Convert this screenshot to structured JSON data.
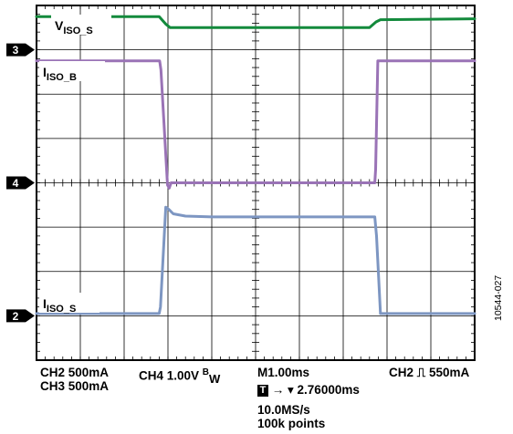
{
  "chart_data": {
    "type": "line",
    "grid": true,
    "time_axis": {
      "divisions": 10,
      "time_per_div": "1.00ms"
    },
    "vertical_divisions": 8,
    "markers": [
      {
        "label": "3",
        "channel": "CH3",
        "level_div": 3.0
      },
      {
        "label": "4",
        "channel": "CH4",
        "level_div": 0.0
      },
      {
        "label": "2",
        "channel": "CH2",
        "level_div": -3.0
      }
    ],
    "series": [
      {
        "name": "VISO_S",
        "label_main": "V",
        "label_sub": "ISO_S",
        "color": "#138a3c",
        "x_div": [
          0,
          2.8,
          2.95,
          3.05,
          7.6,
          7.75,
          7.85,
          10
        ],
        "y_div": [
          3.75,
          3.75,
          3.58,
          3.5,
          3.5,
          3.63,
          3.68,
          3.7
        ]
      },
      {
        "name": "IISO_B",
        "label_main": "I",
        "label_sub": "ISO_B",
        "color": "#9a73b6",
        "x_div": [
          0,
          2.81,
          2.84,
          2.99,
          3.03,
          3.07,
          3.12,
          7.72,
          7.74,
          7.79,
          10
        ],
        "y_div": [
          2.75,
          2.75,
          2.55,
          -0.05,
          -0.12,
          0.0,
          0.0,
          0.0,
          0.3,
          2.75,
          2.75
        ]
      },
      {
        "name": "IISO_S",
        "label_main": "I",
        "label_sub": "ISO_S",
        "color": "#7d96c2",
        "x_div": [
          0,
          2.8,
          2.83,
          2.95,
          3.02,
          3.12,
          3.4,
          4.0,
          7.72,
          7.76,
          7.85,
          10
        ],
        "y_div": [
          -2.95,
          -2.95,
          -2.8,
          -0.55,
          -0.6,
          -0.7,
          -0.75,
          -0.77,
          -0.77,
          -1.2,
          -2.95,
          -2.95
        ]
      }
    ]
  },
  "status": {
    "ch2_scale": "CH2  500mA",
    "ch3_scale": "CH3  500mA",
    "ch4_scale": "CH4  1.00V ",
    "bw_main": "B",
    "bw_sub": "W",
    "timebase": "M1.00ms",
    "trigger": "CH2 ⎍ 550mA",
    "trigger_icon": "T",
    "trigger_pos": "→ ▾ 2.76000ms",
    "sample_rate": "10.0MS/s",
    "record_length": "100k points"
  },
  "figure_id": "10544-027"
}
